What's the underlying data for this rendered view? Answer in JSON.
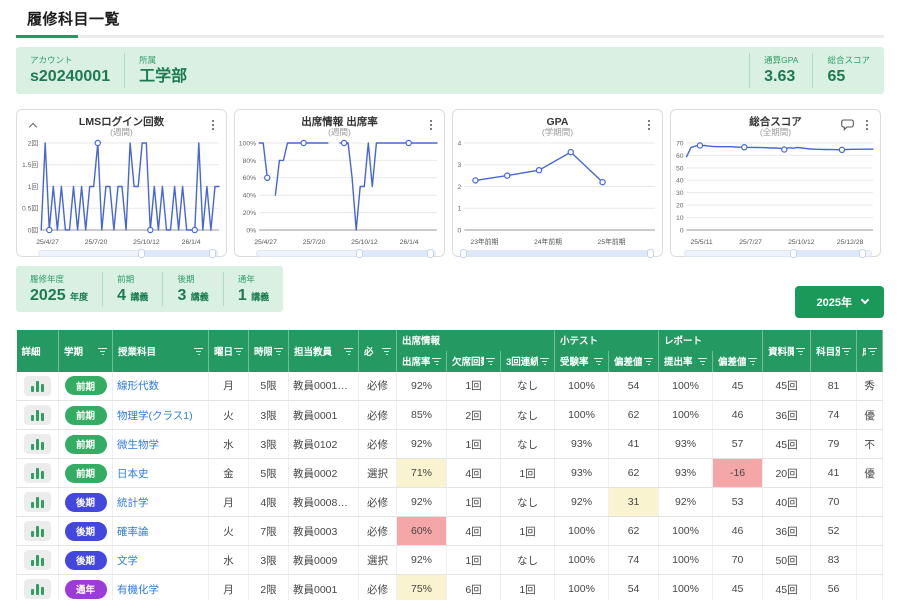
{
  "page": {
    "title": "履修科目一覧"
  },
  "colors": {
    "accent_green": "#1f9d61",
    "light_green_bg": "#d9f0e3",
    "link_blue": "#2d7ce0",
    "line_blue": "#4566d8",
    "pill_green": "#35ac63",
    "pill_blue": "#4447dd",
    "pill_purple": "#9d3bd8",
    "highlight_yellow": "#faf3cf",
    "highlight_red": "#f5a7a7"
  },
  "summary_top": {
    "account_label": "アカウント",
    "account_value": "s20240001",
    "affiliation_label": "所属",
    "affiliation_value": "工学部",
    "gpa_label": "通算GPA",
    "gpa_value": "3.63",
    "score_label": "総合スコア",
    "score_value": "65"
  },
  "summary_enrollment": {
    "year_label": "履修年度",
    "year_value": "2025",
    "year_unit": "年度",
    "items": [
      {
        "label": "前期",
        "value": "4",
        "unit": "講義"
      },
      {
        "label": "後期",
        "value": "3",
        "unit": "講義"
      },
      {
        "label": "通年",
        "value": "1",
        "unit": "講義"
      }
    ]
  },
  "year_button": {
    "label": "2025年"
  },
  "chart_data": [
    {
      "type": "line",
      "title": "LMSログイン回数",
      "subtitle": "(週間)",
      "ylim": [
        0,
        2
      ],
      "yticks": [
        0,
        0.5,
        1,
        1.5,
        2
      ],
      "ytick_labels": [
        "0回",
        "0.5回",
        "1回",
        "1.5回",
        "2回"
      ],
      "x_tick_labels": [
        "25/4/27",
        "25/7/20",
        "25/10/12",
        "26/1/4"
      ],
      "x_tick_indices": [
        0,
        12,
        24,
        36
      ],
      "values": [
        0,
        2,
        0,
        1,
        0,
        1,
        0,
        0,
        1,
        0,
        1,
        0,
        1,
        1,
        2,
        0,
        1,
        1,
        0,
        1,
        1,
        0,
        2,
        1,
        1,
        2,
        2,
        0,
        1,
        0,
        1,
        0,
        0,
        1,
        0,
        1,
        0,
        0,
        0,
        2,
        0,
        1,
        0,
        1,
        1
      ],
      "marker_indices": [
        2,
        14,
        27,
        38
      ],
      "line_color": "#4566d8",
      "scrollbar": {
        "start": 0.57,
        "end": 0.97
      }
    },
    {
      "type": "line",
      "title": "出席情報 出席率",
      "subtitle": "(週間)",
      "ylim": [
        0,
        100
      ],
      "yticks": [
        0,
        20,
        40,
        60,
        80,
        100
      ],
      "ytick_labels": [
        "0%",
        "20%",
        "40%",
        "60%",
        "80%",
        "100%"
      ],
      "x_tick_labels": [
        "25/4/27",
        "25/7/20",
        "25/10/12",
        "26/1/4"
      ],
      "x_tick_indices": [
        0,
        12,
        24,
        36
      ],
      "values": [
        100,
        100,
        60,
        null,
        40,
        80,
        80,
        100,
        100,
        100,
        100,
        100,
        100,
        100,
        100,
        100,
        100,
        100,
        null,
        null,
        100,
        100,
        100,
        60,
        0,
        50,
        50,
        100,
        50,
        100,
        100,
        100,
        100,
        100,
        100,
        100,
        100,
        100,
        100,
        100,
        100,
        100,
        100,
        100,
        100
      ],
      "marker_indices": [
        2,
        11,
        21,
        37
      ],
      "line_color": "#4566d8",
      "scrollbar": {
        "start": 0.57,
        "end": 0.97
      }
    },
    {
      "type": "line",
      "title": "GPA",
      "subtitle": "(学期間)",
      "ylim": [
        0,
        4
      ],
      "yticks": [
        0,
        1,
        2,
        3,
        4
      ],
      "ytick_labels": [
        "0",
        "1",
        "2",
        "3",
        "4"
      ],
      "x_tick_labels": [
        "23年前期",
        "24年前期",
        "25年前期"
      ],
      "x_tick_indices": [
        0,
        2,
        4
      ],
      "x_slots": 6,
      "x_offset": 0.35,
      "values": [
        2.28,
        2.5,
        2.75,
        3.58,
        2.2
      ],
      "marker_indices": [
        0,
        1,
        2,
        3,
        4
      ],
      "line_color": "#4566d8",
      "scrollbar": {
        "start": 0.005,
        "end": 0.985
      }
    },
    {
      "type": "line",
      "title": "総合スコア",
      "subtitle": "(全期間)",
      "ylim": [
        0,
        70
      ],
      "yticks": [
        0,
        10,
        20,
        30,
        40,
        50,
        60,
        70
      ],
      "ytick_labels": [
        "0",
        "10",
        "20",
        "30",
        "40",
        "50",
        "60",
        "70"
      ],
      "x_tick_labels": [
        "25/5/11",
        "25/7/27",
        "25/10/12",
        "25/12/28"
      ],
      "x_tick_indices": [
        2,
        13,
        24,
        35
      ],
      "values": [
        59,
        66.5,
        67.5,
        68,
        68,
        67.5,
        67.2,
        67,
        67,
        67,
        67,
        66.8,
        66.6,
        66.6,
        66.5,
        66.5,
        66.4,
        66.3,
        66.2,
        66,
        66,
        65.8,
        64.8,
        66.2,
        65.8,
        66.5,
        66,
        65.5,
        65.2,
        65,
        64.9,
        64.8,
        64.8,
        64.7,
        64.6,
        64.5,
        64.8,
        64.9,
        64.9,
        65,
        65,
        65,
        65
      ],
      "marker_indices": [
        3,
        13,
        22,
        35
      ],
      "line_color": "#4566d8",
      "scrollbar": {
        "start": 0.58,
        "end": 0.95
      }
    }
  ],
  "table": {
    "groups": [
      {
        "label": "出席情報"
      },
      {
        "label": "小テスト"
      },
      {
        "label": "レポート"
      }
    ],
    "columns": [
      {
        "key": "detail",
        "label": "詳細",
        "filter": false
      },
      {
        "key": "semester",
        "label": "学期",
        "filter": true
      },
      {
        "key": "course",
        "label": "授業科目",
        "filter": true
      },
      {
        "key": "day",
        "label": "曜日",
        "filter": true
      },
      {
        "key": "period",
        "label": "時限",
        "filter": true
      },
      {
        "key": "instructor",
        "label": "担当教員",
        "filter": true
      },
      {
        "key": "required",
        "label": "必",
        "filter": true
      },
      {
        "key": "attendance_rate",
        "label": "出席率",
        "filter": true,
        "group": "出席情報"
      },
      {
        "key": "absences",
        "label": "欠席回数",
        "filter": true,
        "group": "出席情報"
      },
      {
        "key": "consecutive",
        "label": "3回連続",
        "filter": true,
        "group": "出席情報"
      },
      {
        "key": "quiz_rate",
        "label": "受験率",
        "filter": true,
        "group": "小テスト"
      },
      {
        "key": "quiz_dev",
        "label": "偏差値",
        "filter": true,
        "group": "小テスト"
      },
      {
        "key": "report_rate",
        "label": "提出率",
        "filter": true,
        "group": "レポート"
      },
      {
        "key": "report_dev",
        "label": "偏差値",
        "filter": true,
        "group": "レポート"
      },
      {
        "key": "materials",
        "label": "資料閲覧",
        "filter": true
      },
      {
        "key": "subject_score",
        "label": "科目別ス",
        "filter": true
      },
      {
        "key": "grade",
        "label": "成",
        "filter": true
      }
    ],
    "rows": [
      {
        "semester": "前期",
        "semester_color": "pill_green",
        "course": "線形代数",
        "day": "月",
        "period": "5限",
        "instructor": "教員0001…",
        "required": "必修",
        "attendance_rate": "92%",
        "absences": "1回",
        "consecutive": "なし",
        "quiz_rate": "100%",
        "quiz_dev": "54",
        "report_rate": "100%",
        "report_dev": "45",
        "materials": "45回",
        "subject_score": "81",
        "grade": "秀",
        "hl": {}
      },
      {
        "semester": "前期",
        "semester_color": "pill_green",
        "course": "物理学(クラス1)",
        "day": "火",
        "period": "3限",
        "instructor": "教員0001",
        "required": "必修",
        "attendance_rate": "85%",
        "absences": "2回",
        "consecutive": "なし",
        "quiz_rate": "100%",
        "quiz_dev": "62",
        "report_rate": "100%",
        "report_dev": "46",
        "materials": "36回",
        "subject_score": "74",
        "grade": "優",
        "hl": {}
      },
      {
        "semester": "前期",
        "semester_color": "pill_green",
        "course": "微生物学",
        "day": "水",
        "period": "3限",
        "instructor": "教員0102",
        "required": "必修",
        "attendance_rate": "92%",
        "absences": "1回",
        "consecutive": "なし",
        "quiz_rate": "93%",
        "quiz_dev": "41",
        "report_rate": "93%",
        "report_dev": "57",
        "materials": "45回",
        "subject_score": "79",
        "grade": "不",
        "hl": {}
      },
      {
        "semester": "前期",
        "semester_color": "pill_green",
        "course": "日本史",
        "day": "金",
        "period": "5限",
        "instructor": "教員0002",
        "required": "選択",
        "attendance_rate": "71%",
        "absences": "4回",
        "consecutive": "1回",
        "quiz_rate": "93%",
        "quiz_dev": "62",
        "report_rate": "93%",
        "report_dev": "-16",
        "materials": "20回",
        "subject_score": "41",
        "grade": "優",
        "hl": {
          "attendance_rate": "yellow",
          "report_dev": "red"
        }
      },
      {
        "semester": "後期",
        "semester_color": "pill_blue",
        "course": "統計学",
        "day": "月",
        "period": "4限",
        "instructor": "教員0008…",
        "required": "必修",
        "attendance_rate": "92%",
        "absences": "1回",
        "consecutive": "なし",
        "quiz_rate": "92%",
        "quiz_dev": "31",
        "report_rate": "92%",
        "report_dev": "53",
        "materials": "40回",
        "subject_score": "70",
        "grade": "",
        "hl": {
          "quiz_dev": "yellow"
        }
      },
      {
        "semester": "後期",
        "semester_color": "pill_blue",
        "course": "確率論",
        "day": "火",
        "period": "7限",
        "instructor": "教員0003",
        "required": "必修",
        "attendance_rate": "60%",
        "absences": "4回",
        "consecutive": "1回",
        "quiz_rate": "100%",
        "quiz_dev": "62",
        "report_rate": "100%",
        "report_dev": "46",
        "materials": "36回",
        "subject_score": "52",
        "grade": "",
        "hl": {
          "attendance_rate": "red"
        }
      },
      {
        "semester": "後期",
        "semester_color": "pill_blue",
        "course": "文学",
        "day": "水",
        "period": "3限",
        "instructor": "教員0009",
        "required": "選択",
        "attendance_rate": "92%",
        "absences": "1回",
        "consecutive": "なし",
        "quiz_rate": "100%",
        "quiz_dev": "74",
        "report_rate": "100%",
        "report_dev": "70",
        "materials": "50回",
        "subject_score": "83",
        "grade": "",
        "hl": {}
      },
      {
        "semester": "通年",
        "semester_color": "pill_purple",
        "course": "有機化学",
        "day": "月",
        "period": "2限",
        "instructor": "教員0001",
        "required": "必修",
        "attendance_rate": "75%",
        "absences": "6回",
        "consecutive": "1回",
        "quiz_rate": "100%",
        "quiz_dev": "54",
        "report_rate": "100%",
        "report_dev": "45",
        "materials": "45回",
        "subject_score": "56",
        "grade": "",
        "hl": {
          "attendance_rate": "yellow"
        }
      }
    ]
  }
}
